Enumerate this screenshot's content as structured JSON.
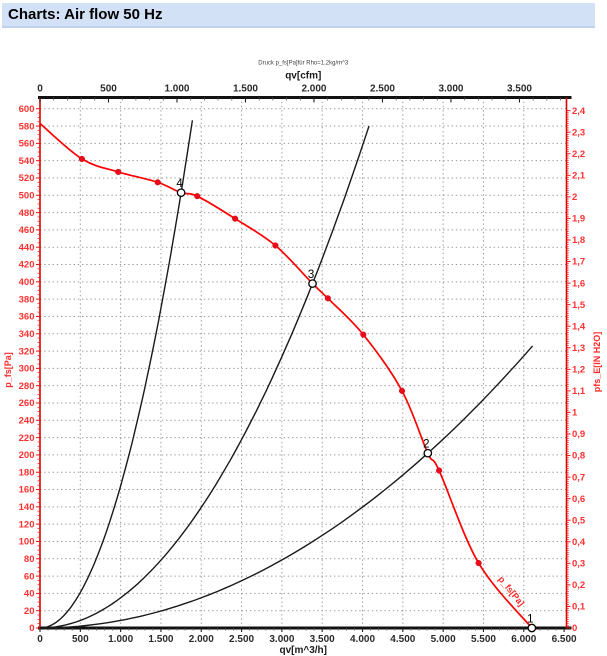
{
  "header": {
    "title": "Charts: Air flow 50 Hz",
    "bar_color": "#d3e1f7"
  },
  "chart_data": {
    "type": "line",
    "note": "Druck p_fs[Pa]für Rho=1,2kg/m^3",
    "axes": {
      "bottom": {
        "label": "qv[m^3/h]",
        "min": 0,
        "max": 6500,
        "major_step": 500,
        "minor_step": 100,
        "tick_labels": [
          "0",
          "500",
          "1.000",
          "1.500",
          "2.000",
          "2.500",
          "3.000",
          "3.500",
          "4.000",
          "4.500",
          "5.000",
          "5.500",
          "6.000",
          "6.500"
        ]
      },
      "top": {
        "label": "qv[cfm]",
        "min": 0,
        "max": 3500,
        "major_step": 500,
        "minor_step": 100,
        "minor_max": 3800,
        "cfm_to_m3h": 1.699,
        "tick_labels": [
          "0",
          "500",
          "1.000",
          "1.500",
          "2.000",
          "2.500",
          "3.000",
          "3.500"
        ]
      },
      "left": {
        "label": "p_fs[Pa]",
        "min": 0,
        "max": 600,
        "major_step": 20,
        "minor_step": 5,
        "tick_labels": [
          "0",
          "20",
          "40",
          "60",
          "80",
          "100",
          "120",
          "140",
          "160",
          "180",
          "200",
          "220",
          "240",
          "260",
          "280",
          "300",
          "320",
          "340",
          "360",
          "380",
          "400",
          "420",
          "440",
          "460",
          "480",
          "500",
          "520",
          "540",
          "560",
          "580",
          "600"
        ]
      },
      "right": {
        "label": "pfs_E[IN H2O]",
        "min": 0,
        "max": 2.4,
        "major_step": 0.1,
        "minor_step": 0.01,
        "inh2o_to_pa": 249.089,
        "tick_labels": [
          "0",
          "0,1",
          "0,2",
          "0,3",
          "0,4",
          "0,5",
          "0,6",
          "0,7",
          "0,8",
          "0,9",
          "1",
          "1,1",
          "1,2",
          "1,3",
          "1,4",
          "1,5",
          "1,6",
          "1,7",
          "1,8",
          "1,9",
          "2",
          "2,1",
          "2,2",
          "2,3",
          "2,4"
        ]
      }
    },
    "fan_curve": {
      "name": "fan-pressure-curve",
      "color": "#ff0000",
      "end_label": "p_fs[Pa]",
      "points": [
        [
          0,
          583
        ],
        [
          520,
          542
        ],
        [
          970,
          527
        ],
        [
          1460,
          515
        ],
        [
          1750,
          503
        ],
        [
          1950,
          499
        ],
        [
          2420,
          473
        ],
        [
          2920,
          442
        ],
        [
          3380,
          398
        ],
        [
          3570,
          381
        ],
        [
          4010,
          339
        ],
        [
          4490,
          274
        ],
        [
          4810,
          202
        ],
        [
          4950,
          182
        ],
        [
          5440,
          75
        ],
        [
          6100,
          0
        ]
      ],
      "marker_points": [
        [
          520,
          542
        ],
        [
          970,
          527
        ],
        [
          1460,
          515
        ],
        [
          1950,
          499
        ],
        [
          2420,
          473
        ],
        [
          2920,
          442
        ],
        [
          3570,
          381
        ],
        [
          4010,
          339
        ],
        [
          4490,
          274
        ],
        [
          4950,
          182
        ],
        [
          5440,
          75
        ]
      ]
    },
    "system_curves": [
      {
        "name": "system-curve-high",
        "point": [
          1750,
          503
        ],
        "q_end": 1890
      },
      {
        "name": "system-curve-mid",
        "point": [
          3380,
          398
        ],
        "q_end": 4080
      },
      {
        "name": "system-curve-low",
        "point": [
          4810,
          202
        ],
        "q_end": 6110
      }
    ],
    "operating_points": [
      {
        "label": "4",
        "q": 1750,
        "p": 503
      },
      {
        "label": "3",
        "q": 3380,
        "p": 398
      },
      {
        "label": "2",
        "q": 4810,
        "p": 202
      },
      {
        "label": "1",
        "q": 6100,
        "p": 0
      }
    ],
    "colors": {
      "curve": "#ff0000",
      "axis_red": "#ff3030",
      "grid": "#9a9a9a",
      "frame": "#111111"
    }
  }
}
